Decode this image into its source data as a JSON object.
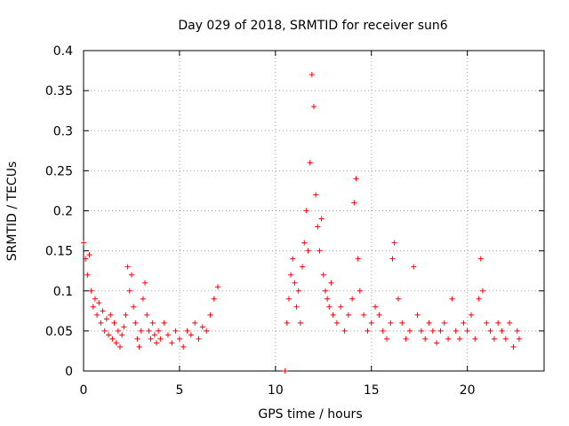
{
  "chart_data": {
    "type": "scatter",
    "title": "Day 029 of 2018, SRMTID for receiver sun6",
    "xlabel": "GPS time / hours",
    "ylabel": "SRMTID / TECUs",
    "xlim": [
      0,
      24
    ],
    "ylim": [
      0,
      0.4
    ],
    "xticks": [
      0,
      5,
      10,
      15,
      20
    ],
    "xtick_labels": [
      "0",
      "5",
      "10",
      "15",
      "20"
    ],
    "yticks": [
      0,
      0.05,
      0.1,
      0.15,
      0.2,
      0.25,
      0.3,
      0.35,
      0.4
    ],
    "ytick_labels": [
      "0",
      "0.05",
      "0.1",
      "0.15",
      "0.2",
      "0.25",
      "0.3",
      "0.35",
      "0.4"
    ],
    "grid": true,
    "marker": "+",
    "color": "#ff0000",
    "series": [
      {
        "name": "SRMTID",
        "points": [
          [
            0.0,
            0.16
          ],
          [
            0.1,
            0.14
          ],
          [
            0.2,
            0.12
          ],
          [
            0.3,
            0.145
          ],
          [
            0.4,
            0.1
          ],
          [
            0.5,
            0.08
          ],
          [
            0.6,
            0.09
          ],
          [
            0.7,
            0.07
          ],
          [
            0.8,
            0.085
          ],
          [
            0.9,
            0.06
          ],
          [
            1.0,
            0.075
          ],
          [
            1.1,
            0.05
          ],
          [
            1.2,
            0.065
          ],
          [
            1.3,
            0.045
          ],
          [
            1.4,
            0.07
          ],
          [
            1.5,
            0.04
          ],
          [
            1.6,
            0.06
          ],
          [
            1.7,
            0.035
          ],
          [
            1.8,
            0.05
          ],
          [
            1.9,
            0.03
          ],
          [
            2.0,
            0.045
          ],
          [
            2.1,
            0.055
          ],
          [
            2.2,
            0.07
          ],
          [
            2.3,
            0.13
          ],
          [
            2.4,
            0.1
          ],
          [
            2.5,
            0.12
          ],
          [
            2.6,
            0.08
          ],
          [
            2.7,
            0.06
          ],
          [
            2.8,
            0.04
          ],
          [
            2.9,
            0.03
          ],
          [
            3.0,
            0.05
          ],
          [
            3.1,
            0.09
          ],
          [
            3.2,
            0.11
          ],
          [
            3.3,
            0.07
          ],
          [
            3.4,
            0.05
          ],
          [
            3.5,
            0.04
          ],
          [
            3.6,
            0.06
          ],
          [
            3.7,
            0.045
          ],
          [
            3.8,
            0.035
          ],
          [
            3.9,
            0.05
          ],
          [
            4.0,
            0.04
          ],
          [
            4.2,
            0.06
          ],
          [
            4.4,
            0.045
          ],
          [
            4.6,
            0.035
          ],
          [
            4.8,
            0.05
          ],
          [
            5.0,
            0.04
          ],
          [
            5.2,
            0.03
          ],
          [
            5.4,
            0.05
          ],
          [
            5.6,
            0.045
          ],
          [
            5.8,
            0.06
          ],
          [
            6.0,
            0.04
          ],
          [
            6.2,
            0.055
          ],
          [
            6.4,
            0.05
          ],
          [
            6.6,
            0.07
          ],
          [
            6.8,
            0.09
          ],
          [
            7.0,
            0.105
          ],
          [
            10.5,
            0.0
          ],
          [
            10.6,
            0.06
          ],
          [
            10.7,
            0.09
          ],
          [
            10.8,
            0.12
          ],
          [
            10.9,
            0.14
          ],
          [
            11.0,
            0.11
          ],
          [
            11.1,
            0.08
          ],
          [
            11.2,
            0.1
          ],
          [
            11.3,
            0.06
          ],
          [
            11.4,
            0.13
          ],
          [
            11.5,
            0.16
          ],
          [
            11.6,
            0.2
          ],
          [
            11.7,
            0.15
          ],
          [
            11.8,
            0.26
          ],
          [
            11.9,
            0.37
          ],
          [
            12.0,
            0.33
          ],
          [
            12.1,
            0.22
          ],
          [
            12.2,
            0.18
          ],
          [
            12.3,
            0.15
          ],
          [
            12.4,
            0.19
          ],
          [
            12.5,
            0.12
          ],
          [
            12.6,
            0.1
          ],
          [
            12.7,
            0.09
          ],
          [
            12.8,
            0.08
          ],
          [
            12.9,
            0.11
          ],
          [
            13.0,
            0.07
          ],
          [
            13.2,
            0.06
          ],
          [
            13.4,
            0.08
          ],
          [
            13.6,
            0.05
          ],
          [
            13.8,
            0.07
          ],
          [
            14.0,
            0.09
          ],
          [
            14.1,
            0.21
          ],
          [
            14.2,
            0.24
          ],
          [
            14.3,
            0.14
          ],
          [
            14.4,
            0.1
          ],
          [
            14.6,
            0.07
          ],
          [
            14.8,
            0.05
          ],
          [
            15.0,
            0.06
          ],
          [
            15.2,
            0.08
          ],
          [
            15.4,
            0.07
          ],
          [
            15.6,
            0.05
          ],
          [
            15.8,
            0.04
          ],
          [
            16.0,
            0.06
          ],
          [
            16.1,
            0.14
          ],
          [
            16.2,
            0.16
          ],
          [
            16.4,
            0.09
          ],
          [
            16.6,
            0.06
          ],
          [
            16.8,
            0.04
          ],
          [
            17.0,
            0.05
          ],
          [
            17.2,
            0.13
          ],
          [
            17.4,
            0.07
          ],
          [
            17.6,
            0.05
          ],
          [
            17.8,
            0.04
          ],
          [
            18.0,
            0.06
          ],
          [
            18.2,
            0.05
          ],
          [
            18.4,
            0.035
          ],
          [
            18.6,
            0.05
          ],
          [
            18.8,
            0.06
          ],
          [
            19.0,
            0.04
          ],
          [
            19.2,
            0.09
          ],
          [
            19.4,
            0.05
          ],
          [
            19.6,
            0.04
          ],
          [
            19.8,
            0.06
          ],
          [
            20.0,
            0.05
          ],
          [
            20.2,
            0.07
          ],
          [
            20.4,
            0.04
          ],
          [
            20.6,
            0.09
          ],
          [
            20.7,
            0.14
          ],
          [
            20.8,
            0.1
          ],
          [
            21.0,
            0.06
          ],
          [
            21.2,
            0.05
          ],
          [
            21.4,
            0.04
          ],
          [
            21.6,
            0.06
          ],
          [
            21.8,
            0.05
          ],
          [
            22.0,
            0.04
          ],
          [
            22.2,
            0.06
          ],
          [
            22.4,
            0.03
          ],
          [
            22.6,
            0.05
          ],
          [
            22.7,
            0.04
          ]
        ]
      }
    ]
  }
}
